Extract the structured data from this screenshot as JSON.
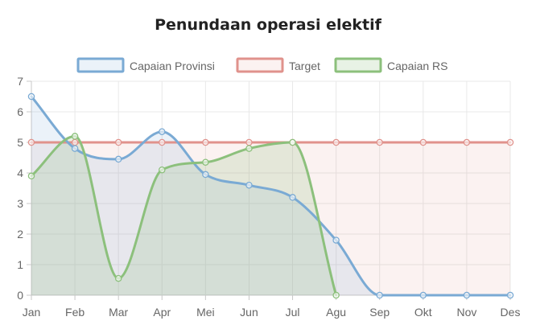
{
  "chart_data": {
    "type": "line",
    "title": "Penundaan operasi elektif",
    "categories": [
      "Jan",
      "Feb",
      "Mar",
      "Apr",
      "Mei",
      "Jun",
      "Jul",
      "Agu",
      "Sep",
      "Okt",
      "Nov",
      "Des"
    ],
    "ylim": [
      0,
      7
    ],
    "yticks": [
      0,
      1,
      2,
      3,
      4,
      5,
      6,
      7
    ],
    "grid": true,
    "legend_position": "top",
    "series": [
      {
        "name": "Capaian Provinsi",
        "color": "#7aaad4",
        "fill": "rgba(122,170,212,0.15)",
        "values": [
          6.5,
          4.8,
          4.45,
          5.35,
          3.95,
          3.6,
          3.2,
          1.8,
          0,
          0,
          0,
          0
        ]
      },
      {
        "name": "Target",
        "color": "#e0928c",
        "fill": "rgba(224,146,140,0.12)",
        "values": [
          5,
          5,
          5,
          5,
          5,
          5,
          5,
          5,
          5,
          5,
          5,
          5
        ]
      },
      {
        "name": "Capaian RS",
        "color": "#8cc07c",
        "fill": "rgba(140,192,124,0.20)",
        "values": [
          3.9,
          5.2,
          0.55,
          4.1,
          4.35,
          4.8,
          5.0,
          0,
          null,
          null,
          null,
          null
        ]
      }
    ]
  }
}
